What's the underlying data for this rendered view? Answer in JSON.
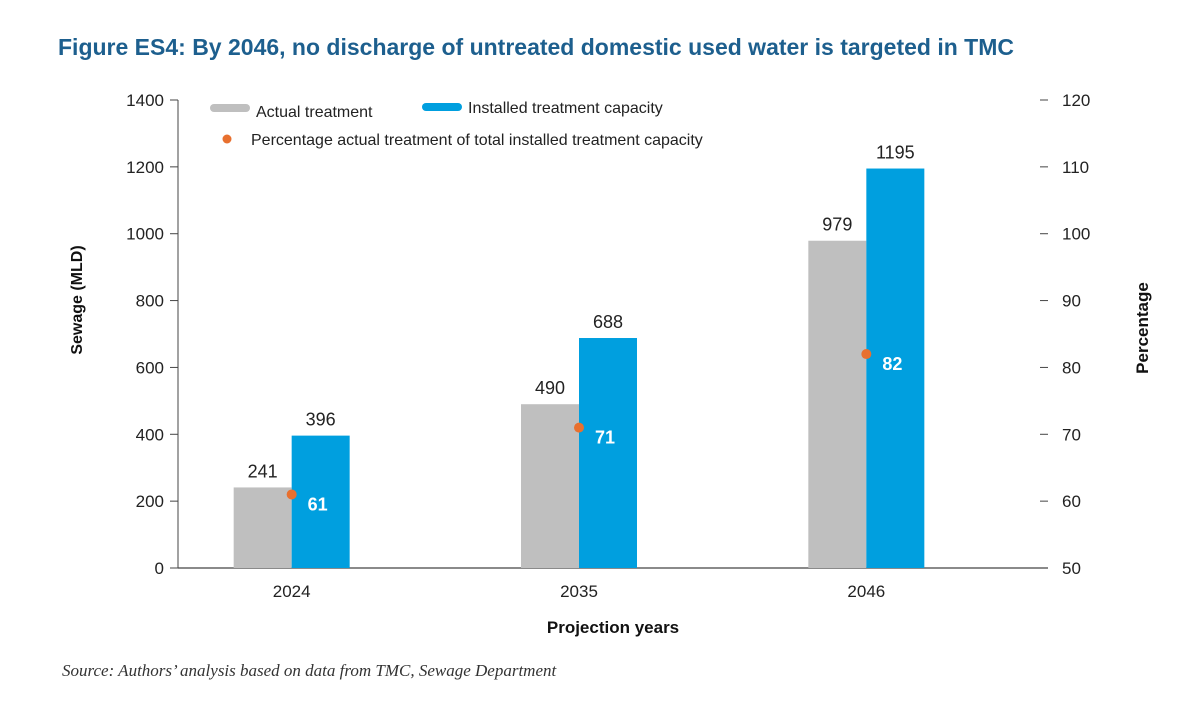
{
  "figure": {
    "title": "Figure ES4: By 2046, no discharge of untreated domestic used water is targeted in TMC",
    "source": "Source: Authors’ analysis based on data from TMC, Sewage Department"
  },
  "chart_data": {
    "type": "bar",
    "categories": [
      "2024",
      "2035",
      "2046"
    ],
    "series": [
      {
        "name": "Actual treatment",
        "axis": "left",
        "values": [
          241,
          490,
          979
        ],
        "color": "#bfbfbf"
      },
      {
        "name": "Installed treatment capacity",
        "axis": "left",
        "values": [
          396,
          688,
          1195
        ],
        "color": "#009fdf"
      }
    ],
    "scatter_series": {
      "name": "Percentage actual treatment of total installed treatment capacity",
      "axis": "right",
      "values": [
        61,
        71,
        82
      ],
      "color": "#e8702f"
    },
    "xlabel": "Projection years",
    "ylabel": "Sewage (MLD)",
    "y2label": "Percentage",
    "ylim": [
      0,
      1400
    ],
    "yticks": [
      "0",
      "200",
      "400",
      "600",
      "800",
      "1000",
      "1200",
      "1400"
    ],
    "y2lim": [
      50,
      120
    ],
    "y2ticks": [
      "50",
      "60",
      "70",
      "80",
      "90",
      "100",
      "110",
      "120"
    ],
    "grid": false,
    "legend_position": "top-left"
  }
}
